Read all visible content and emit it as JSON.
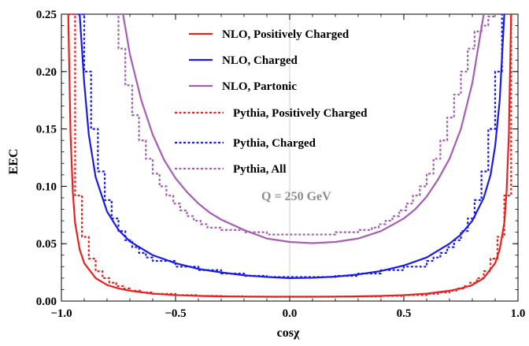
{
  "chart_data": {
    "type": "line",
    "title": "",
    "xlabel": "cosχ",
    "ylabel": "EEC",
    "xlim": [
      -1.0,
      1.0
    ],
    "ylim": [
      0.0,
      0.25
    ],
    "grid": false,
    "xticks": [
      -1.0,
      -0.5,
      0.0,
      0.5,
      1.0
    ],
    "xtick_labels": [
      "−1.0",
      "−0.5",
      "0.0",
      "0.5",
      "1.0"
    ],
    "yticks": [
      0.0,
      0.05,
      0.1,
      0.15,
      0.2,
      0.25
    ],
    "ytick_labels": [
      "0.00",
      "0.05",
      "0.10",
      "0.15",
      "0.20",
      "0.25"
    ],
    "annotation": "Q = 250 GeV",
    "legend_position": "top-center",
    "series": [
      {
        "name": "NLO, Positively Charged",
        "style": "solid",
        "color": "#e8211f",
        "x": [
          -0.97,
          -0.96,
          -0.95,
          -0.94,
          -0.92,
          -0.9,
          -0.85,
          -0.8,
          -0.75,
          -0.7,
          -0.6,
          -0.5,
          -0.4,
          -0.3,
          -0.2,
          -0.1,
          0.0,
          0.1,
          0.2,
          0.3,
          0.4,
          0.5,
          0.6,
          0.7,
          0.75,
          0.8,
          0.85,
          0.9,
          0.92,
          0.94,
          0.95,
          0.96,
          0.97
        ],
        "y": [
          0.25,
          0.145,
          0.095,
          0.068,
          0.045,
          0.033,
          0.02,
          0.014,
          0.011,
          0.009,
          0.0065,
          0.0052,
          0.0045,
          0.0041,
          0.0039,
          0.0038,
          0.0038,
          0.0038,
          0.0039,
          0.0041,
          0.0045,
          0.0052,
          0.0065,
          0.009,
          0.011,
          0.014,
          0.02,
          0.033,
          0.045,
          0.068,
          0.095,
          0.145,
          0.25
        ]
      },
      {
        "name": "NLO, Charged",
        "style": "solid",
        "color": "#1a1ae6",
        "x": [
          -0.92,
          -0.9,
          -0.88,
          -0.85,
          -0.8,
          -0.75,
          -0.7,
          -0.6,
          -0.5,
          -0.4,
          -0.3,
          -0.2,
          -0.1,
          0.0,
          0.1,
          0.2,
          0.3,
          0.4,
          0.5,
          0.6,
          0.7,
          0.75,
          0.8,
          0.85,
          0.88,
          0.9,
          0.92,
          0.94
        ],
        "y": [
          0.25,
          0.19,
          0.145,
          0.108,
          0.078,
          0.062,
          0.052,
          0.04,
          0.033,
          0.028,
          0.025,
          0.0225,
          0.021,
          0.02,
          0.0203,
          0.0213,
          0.0232,
          0.0262,
          0.031,
          0.038,
          0.05,
          0.058,
          0.07,
          0.09,
          0.11,
          0.135,
          0.175,
          0.25
        ]
      },
      {
        "name": "NLO, Partonic",
        "style": "solid",
        "color": "#a55db5",
        "x": [
          -0.73,
          -0.7,
          -0.65,
          -0.6,
          -0.55,
          -0.5,
          -0.45,
          -0.4,
          -0.35,
          -0.3,
          -0.2,
          -0.1,
          0.0,
          0.1,
          0.2,
          0.3,
          0.4,
          0.5,
          0.55,
          0.6,
          0.65,
          0.7,
          0.75,
          0.8,
          0.85
        ],
        "y": [
          0.25,
          0.215,
          0.175,
          0.145,
          0.123,
          0.107,
          0.095,
          0.085,
          0.077,
          0.071,
          0.062,
          0.0545,
          0.0515,
          0.0505,
          0.0515,
          0.0545,
          0.061,
          0.072,
          0.08,
          0.091,
          0.106,
          0.124,
          0.15,
          0.19,
          0.25
        ]
      },
      {
        "name": "Pythia, Positively Charged",
        "style": "dotted-step",
        "color": "#e8211f",
        "x": [
          -0.97,
          -0.94,
          -0.91,
          -0.88,
          -0.85,
          -0.82,
          -0.79,
          -0.76,
          -0.73,
          -0.7,
          -0.65,
          -0.6,
          -0.5,
          -0.4,
          -0.3,
          -0.2,
          -0.1,
          0.0,
          0.1,
          0.2,
          0.3,
          0.4,
          0.5,
          0.6,
          0.65,
          0.7,
          0.73,
          0.76,
          0.79,
          0.82,
          0.85,
          0.88,
          0.91,
          0.94,
          0.97
        ],
        "y": [
          0.25,
          0.092,
          0.056,
          0.037,
          0.026,
          0.02,
          0.016,
          0.013,
          0.011,
          0.009,
          0.0075,
          0.0063,
          0.0052,
          0.0045,
          0.0041,
          0.0039,
          0.0038,
          0.0038,
          0.0038,
          0.0039,
          0.0041,
          0.0045,
          0.0052,
          0.0063,
          0.0075,
          0.009,
          0.011,
          0.013,
          0.016,
          0.02,
          0.026,
          0.037,
          0.056,
          0.092,
          0.25
        ]
      },
      {
        "name": "Pythia, Charged",
        "style": "dotted-step",
        "color": "#1a1ae6",
        "x": [
          -0.93,
          -0.9,
          -0.87,
          -0.84,
          -0.81,
          -0.78,
          -0.75,
          -0.72,
          -0.69,
          -0.66,
          -0.63,
          -0.6,
          -0.5,
          -0.4,
          -0.3,
          -0.2,
          -0.1,
          0.0,
          0.1,
          0.2,
          0.3,
          0.4,
          0.5,
          0.6,
          0.63,
          0.66,
          0.69,
          0.72,
          0.75,
          0.78,
          0.81,
          0.84,
          0.87,
          0.9,
          0.93
        ],
        "y": [
          0.25,
          0.2,
          0.15,
          0.113,
          0.088,
          0.072,
          0.061,
          0.053,
          0.047,
          0.042,
          0.038,
          0.035,
          0.03,
          0.027,
          0.024,
          0.022,
          0.021,
          0.021,
          0.021,
          0.022,
          0.024,
          0.027,
          0.03,
          0.035,
          0.038,
          0.042,
          0.047,
          0.053,
          0.061,
          0.072,
          0.088,
          0.113,
          0.15,
          0.2,
          0.25
        ]
      },
      {
        "name": "Pythia, All",
        "style": "dotted-step",
        "color": "#a55db5",
        "x": [
          -0.78,
          -0.75,
          -0.72,
          -0.69,
          -0.66,
          -0.63,
          -0.6,
          -0.57,
          -0.54,
          -0.51,
          -0.48,
          -0.45,
          -0.42,
          -0.39,
          -0.36,
          -0.3,
          -0.2,
          -0.1,
          0.0,
          0.1,
          0.2,
          0.3,
          0.36,
          0.39,
          0.42,
          0.45,
          0.48,
          0.51,
          0.54,
          0.57,
          0.6,
          0.63,
          0.66,
          0.69,
          0.72,
          0.75,
          0.78,
          0.81,
          0.84,
          0.87,
          0.9
        ],
        "y": [
          0.25,
          0.22,
          0.188,
          0.162,
          0.14,
          0.124,
          0.111,
          0.1,
          0.092,
          0.085,
          0.079,
          0.074,
          0.07,
          0.067,
          0.064,
          0.062,
          0.06,
          0.058,
          0.058,
          0.058,
          0.06,
          0.062,
          0.064,
          0.067,
          0.07,
          0.074,
          0.079,
          0.085,
          0.092,
          0.1,
          0.111,
          0.124,
          0.14,
          0.16,
          0.18,
          0.2,
          0.22,
          0.235,
          0.24,
          0.248,
          0.25
        ]
      }
    ]
  }
}
